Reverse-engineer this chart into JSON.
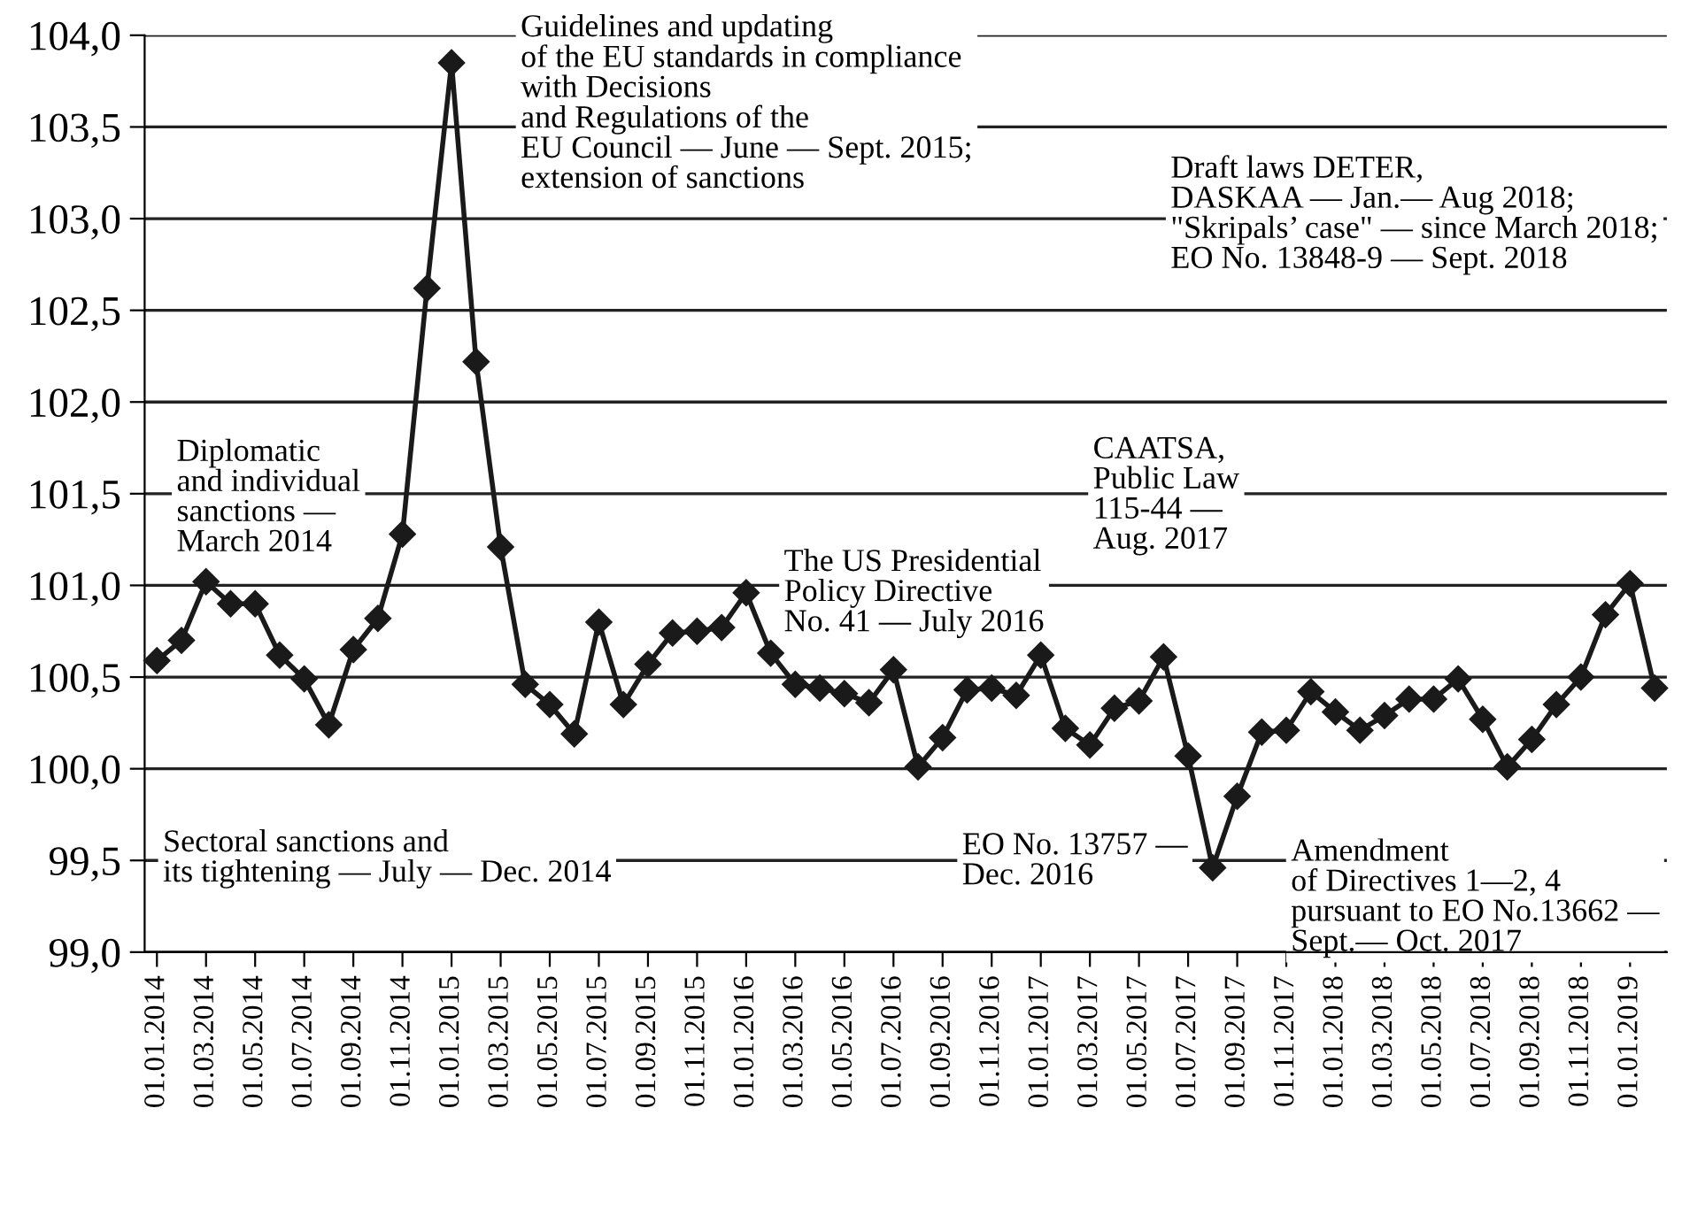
{
  "chart_data": {
    "type": "line",
    "categories": [
      "01.01.2014",
      null,
      "01.03.2014",
      null,
      "01.05.2014",
      null,
      "01.07.2014",
      null,
      "01.09.2014",
      null,
      "01.11.2014",
      null,
      "01.01.2015",
      null,
      "01.03.2015",
      null,
      "01.05.2015",
      null,
      "01.07.2015",
      null,
      "01.09.2015",
      null,
      "01.11.2015",
      null,
      "01.01.2016",
      null,
      "01.03.2016",
      null,
      "01.05.2016",
      null,
      "01.07.2016",
      null,
      "01.09.2016",
      null,
      "01.11.2016",
      null,
      "01.01.2017",
      null,
      "01.03.2017",
      null,
      "01.05.2017",
      null,
      "01.07.2017",
      null,
      "01.09.2017",
      null,
      "01.11.2017",
      null,
      "01.01.2018",
      null,
      "01.03.2018",
      null,
      "01.05.2018",
      null,
      "01.07.2018",
      null,
      "01.09.2018",
      null,
      "01.11.2018",
      null,
      "01.01.2019",
      null
    ],
    "series": [
      {
        "color": "#1a1a1a",
        "values": [
          100.59,
          100.7,
          101.02,
          100.9,
          100.9,
          100.62,
          100.49,
          100.24,
          100.65,
          100.82,
          101.28,
          102.62,
          103.85,
          102.22,
          101.21,
          100.46,
          100.35,
          100.19,
          100.8,
          100.35,
          100.57,
          100.74,
          100.75,
          100.77,
          100.96,
          100.63,
          100.46,
          100.44,
          100.41,
          100.36,
          100.54,
          100.01,
          100.17,
          100.43,
          100.44,
          100.4,
          100.62,
          100.22,
          100.13,
          100.33,
          100.37,
          100.61,
          100.07,
          99.46,
          99.85,
          100.2,
          100.21,
          100.42,
          100.31,
          100.21,
          100.29,
          100.38,
          100.38,
          100.49,
          100.27,
          100.01,
          100.16,
          100.35,
          100.5,
          100.84,
          101.01,
          100.44
        ]
      }
    ],
    "ylim": [
      99.0,
      104.0
    ],
    "yticks": [
      {
        "value": 99.0,
        "label": "99,0"
      },
      {
        "value": 99.5,
        "label": "99,5"
      },
      {
        "value": 100.0,
        "label": "100,0"
      },
      {
        "value": 100.5,
        "label": "100,5"
      },
      {
        "value": 101.0,
        "label": "101,0"
      },
      {
        "value": 101.5,
        "label": "101,5"
      },
      {
        "value": 102.0,
        "label": "102,0"
      },
      {
        "value": 102.5,
        "label": "102,5"
      },
      {
        "value": 103.0,
        "label": "103,0"
      },
      {
        "value": 103.5,
        "label": "103,5"
      },
      {
        "value": 104.0,
        "label": "104,0"
      }
    ],
    "grid": "y",
    "marker": "diamond",
    "line_style": "solid",
    "annotations": [
      "Guidelines and updating\nof the EU standards in compliance\nwith Decisions\nand Regulations of the\nEU Council — June — Sept. 2015;\nextension of sanctions",
      "Draft laws DETER,\nDASKAA — Jan.— Aug 2018;\n\"Skripals’ case\" — since March 2018;\nEO No. 13848-9 — Sept. 2018",
      "Diplomatic\nand individual\nsanctions —\nMarch 2014",
      "CAATSA,\nPublic Law\n115-44 —\nAug. 2017",
      "The US Presidential\nPolicy Directive\nNo. 41 — July 2016",
      "Sectoral sanctions and\nits tightening — July — Dec. 2014",
      "EO No. 13757 —\nDec. 2016",
      "Amendment\nof Directives 1—2, 4\npursuant to EO No.13662 —\nSept.— Oct. 2017"
    ]
  }
}
